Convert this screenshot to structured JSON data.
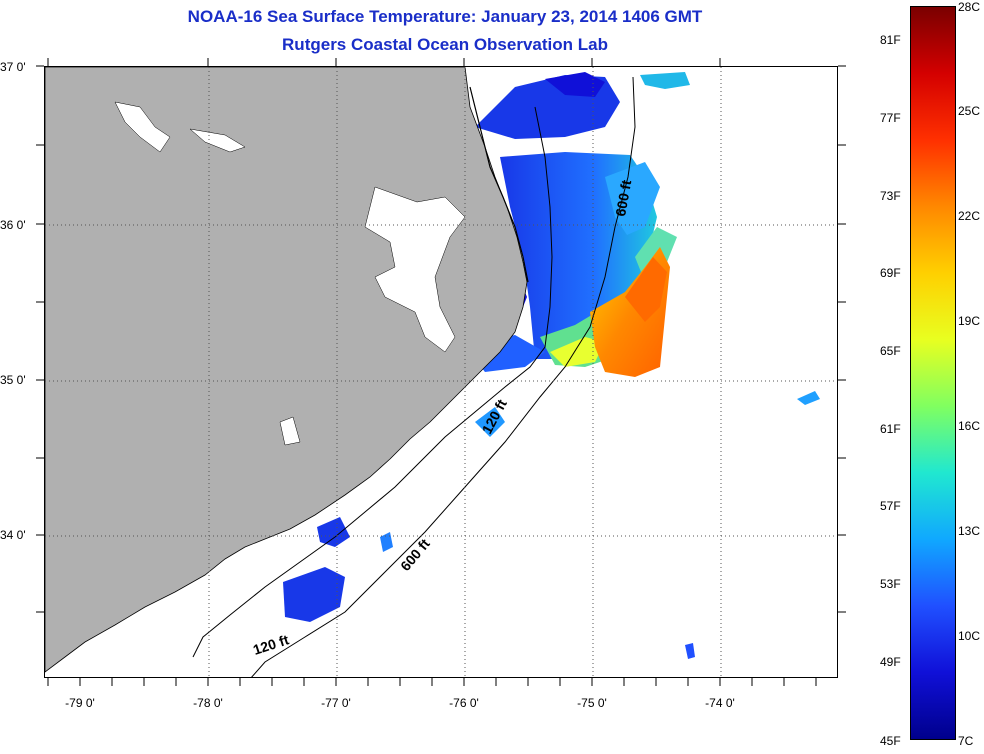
{
  "title_line1": "NOAA-16 Sea Surface Temperature:  January 23, 2014 1406 GMT",
  "title_line2": "Rutgers Coastal Ocean Observation Lab",
  "lat_labels": [
    "37 0'",
    "36 0'",
    "35 0'",
    "34 0'"
  ],
  "lon_labels": [
    "-79 0'",
    "-78 0'",
    "-77 0'",
    "-76 0'",
    "-75 0'",
    "-74 0'"
  ],
  "contour_labels": [
    "600 ft",
    "120 ft",
    "600 ft",
    "120 ft"
  ],
  "colorbar": {
    "fahrenheit": [
      "81F",
      "77F",
      "73F",
      "69F",
      "65F",
      "61F",
      "57F",
      "53F",
      "49F",
      "45F"
    ],
    "celsius": [
      "28C",
      "25C",
      "22C",
      "19C",
      "16C",
      "13C",
      "10C",
      "7C"
    ],
    "colors": [
      "#7a0000",
      "#d40000",
      "#ff3000",
      "#ff8800",
      "#ffd000",
      "#e8ff20",
      "#80ff60",
      "#20e8d0",
      "#10a8ff",
      "#2050ff",
      "#1010d8",
      "#00008c"
    ]
  },
  "colors": {
    "land": "#b0b0b0",
    "ocean_nodata": "#ffffff",
    "title": "#1a2ec8",
    "grid": "#555555"
  }
}
